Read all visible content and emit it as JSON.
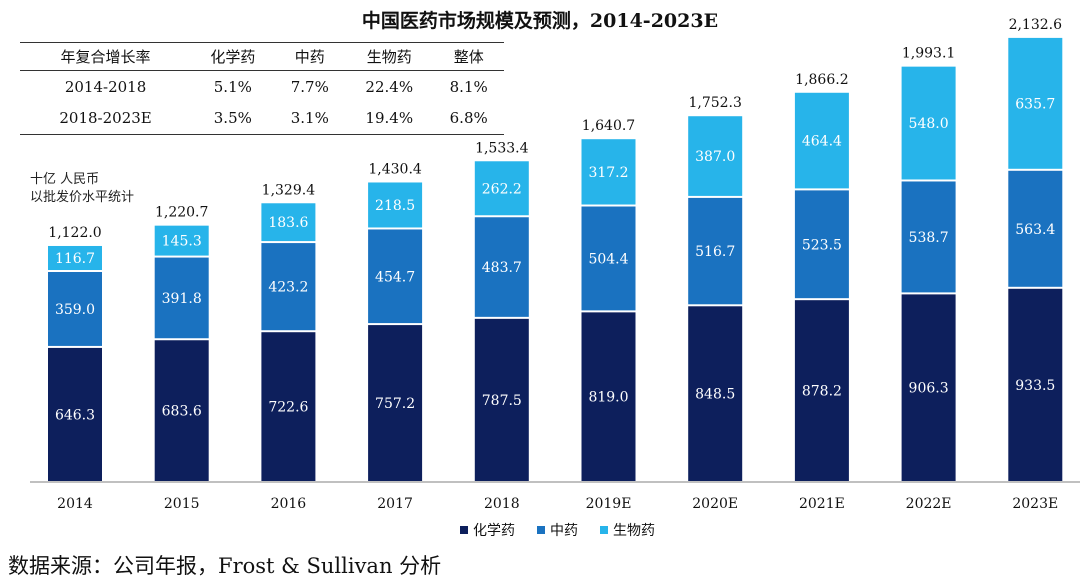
{
  "title": "中国医药市场规模及预测，2014-2023E",
  "cagr_table": {
    "headers": [
      "年复合增长率",
      "化学药",
      "中药",
      "生物药",
      "整体"
    ],
    "rows": [
      [
        "2014-2018",
        "5.1%",
        "7.7%",
        "22.4%",
        "8.1%"
      ],
      [
        "2018-2023E",
        "3.5%",
        "3.1%",
        "19.4%",
        "6.8%"
      ]
    ]
  },
  "unit_label": {
    "line1": "十亿  人民币",
    "line2": "以批发价水平统计"
  },
  "source": "数据来源：公司年报，Frost & Sullivan 分析",
  "chart_data": {
    "type": "bar",
    "stacked": true,
    "categories": [
      "2014",
      "2015",
      "2016",
      "2017",
      "2018",
      "2019E",
      "2020E",
      "2021E",
      "2022E",
      "2023E"
    ],
    "series": [
      {
        "name": "化学药",
        "color": "#0d1f5c",
        "values": [
          646.3,
          683.6,
          722.6,
          757.2,
          787.5,
          819.0,
          848.5,
          878.2,
          906.3,
          933.5
        ]
      },
      {
        "name": "中药",
        "color": "#1a72c0",
        "values": [
          359.0,
          391.8,
          423.2,
          454.7,
          483.7,
          504.4,
          516.7,
          523.5,
          538.7,
          563.4
        ]
      },
      {
        "name": "生物药",
        "color": "#27b4ea",
        "values": [
          116.7,
          145.3,
          183.6,
          218.5,
          262.2,
          317.2,
          387.0,
          464.4,
          548.0,
          635.7
        ]
      }
    ],
    "totals": [
      "1,122.0",
      "1,220.7",
      "1,329.4",
      "1,430.4",
      "1,533.4",
      "1,640.7",
      "1,752.3",
      "1,866.2",
      "1,993.1",
      "2,132.6"
    ],
    "labels": [
      [
        "646.3",
        "683.6",
        "722.6",
        "757.2",
        "787.5",
        "819.0",
        "848.5",
        "878.2",
        "906.3",
        "933.5"
      ],
      [
        "359.0",
        "391.8",
        "423.2",
        "454.7",
        "483.7",
        "504.4",
        "516.7",
        "523.5",
        "538.7",
        "563.4"
      ],
      [
        "116.7",
        "145.3",
        "183.6",
        "218.5",
        "262.2",
        "317.2",
        "387.0",
        "464.4",
        "548.0",
        "635.7"
      ]
    ],
    "ylim": [
      0,
      2300
    ],
    "legend": "bottom-center"
  }
}
